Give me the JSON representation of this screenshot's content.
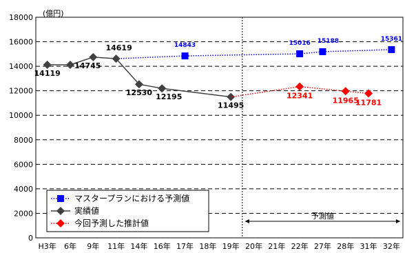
{
  "chart_data": {
    "type": "line",
    "unit_label": "(億円)",
    "categories": [
      "H3年",
      "6年",
      "9年",
      "11年",
      "14年",
      "16年",
      "17年",
      "18年",
      "19年",
      "20年",
      "21年",
      "22年",
      "27年",
      "28年",
      "31年",
      "32年"
    ],
    "ylim": [
      0,
      18000
    ],
    "yticks": [
      0,
      2000,
      4000,
      6000,
      8000,
      10000,
      12000,
      14000,
      16000,
      18000
    ],
    "grid": "horizontal-dashed",
    "legend_position": "bottom-left",
    "forecast_label": "予測値",
    "series": [
      {
        "name": "マスタープランにおける予測値",
        "color": "#0000ff",
        "marker": "square",
        "line": "dotted",
        "points": [
          {
            "x": "11年",
            "y": 14619,
            "marker": false
          },
          {
            "x": "17年",
            "y": 14843,
            "label": "14843"
          },
          {
            "x": "22年",
            "y": 15016,
            "label": "15016"
          },
          {
            "x": "27年",
            "y": 15188,
            "label": "15188"
          },
          {
            "x": "32年",
            "y": 15361,
            "label": "15361"
          }
        ]
      },
      {
        "name": "実績値",
        "color": "#404040",
        "marker": "diamond",
        "line": "solid",
        "points": [
          {
            "x": "H3年",
            "y": 14119,
            "label": "14119"
          },
          {
            "x": "6年",
            "y": 14119
          },
          {
            "x": "9年",
            "y": 14745,
            "label": "14745"
          },
          {
            "x": "11年",
            "y": 14619,
            "label": "14619"
          },
          {
            "x": "14年",
            "y": 12530,
            "label": "12530"
          },
          {
            "x": "16年",
            "y": 12195,
            "label": "12195"
          },
          {
            "x": "19年",
            "y": 11495,
            "label": "11495"
          }
        ]
      },
      {
        "name": "今回予測した推計値",
        "color": "#ff0000",
        "marker": "diamond",
        "line": "dotted",
        "points": [
          {
            "x": "19年",
            "y": 11495,
            "marker": false
          },
          {
            "x": "22年",
            "y": 12341,
            "label": "12341"
          },
          {
            "x": "28年",
            "y": 11965,
            "label": "11965"
          },
          {
            "x": "31年",
            "y": 11781,
            "label": "11781"
          }
        ]
      }
    ]
  }
}
